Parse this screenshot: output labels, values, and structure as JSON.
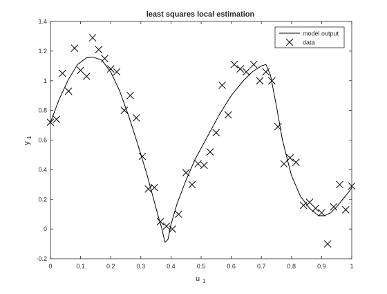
{
  "chart_data": {
    "type": "line",
    "title": "least squares local estimation",
    "xlabel": "u",
    "xlabel_sub": "1",
    "ylabel": "y",
    "ylabel_sub": "1",
    "xlim": [
      0,
      1
    ],
    "ylim": [
      -0.2,
      1.4
    ],
    "xticks": [
      "0",
      "0.1",
      "0.2",
      "0.3",
      "0.4",
      "0.5",
      "0.6",
      "0.7",
      "0.8",
      "0.9",
      "1"
    ],
    "yticks": [
      "-0.2",
      "0",
      "0.2",
      "0.4",
      "0.6",
      "0.8",
      "1",
      "1.2",
      "1.4"
    ],
    "grid": false,
    "legend_position": "top-right",
    "series": [
      {
        "name": "model output",
        "style": "line",
        "color": "#000000",
        "x": [
          0,
          0.03,
          0.06,
          0.09,
          0.12,
          0.14,
          0.17,
          0.2,
          0.23,
          0.26,
          0.29,
          0.32,
          0.34,
          0.36,
          0.37,
          0.38,
          0.39,
          0.4,
          0.42,
          0.45,
          0.48,
          0.52,
          0.56,
          0.6,
          0.64,
          0.67,
          0.7,
          0.715,
          0.73,
          0.75,
          0.77,
          0.8,
          0.83,
          0.86,
          0.89,
          0.91,
          0.93,
          0.95,
          0.97,
          0.99,
          1.0
        ],
        "y": [
          0.72,
          0.88,
          1.01,
          1.11,
          1.155,
          1.16,
          1.14,
          1.06,
          0.93,
          0.76,
          0.57,
          0.37,
          0.22,
          0.07,
          0.0,
          -0.09,
          -0.07,
          0.03,
          0.17,
          0.33,
          0.47,
          0.62,
          0.77,
          0.9,
          1.0,
          1.06,
          1.1,
          1.11,
          1.04,
          0.83,
          0.6,
          0.36,
          0.22,
          0.14,
          0.09,
          0.09,
          0.11,
          0.15,
          0.2,
          0.25,
          0.28
        ]
      },
      {
        "name": "data",
        "style": "markers",
        "marker": "x",
        "color": "#000000",
        "x": [
          0.0,
          0.02,
          0.04,
          0.06,
          0.08,
          0.1,
          0.12,
          0.14,
          0.16,
          0.18,
          0.2,
          0.22,
          0.245,
          0.265,
          0.285,
          0.305,
          0.325,
          0.345,
          0.365,
          0.385,
          0.405,
          0.425,
          0.45,
          0.47,
          0.49,
          0.51,
          0.53,
          0.55,
          0.57,
          0.59,
          0.61,
          0.63,
          0.65,
          0.675,
          0.695,
          0.715,
          0.735,
          0.755,
          0.775,
          0.795,
          0.815,
          0.84,
          0.86,
          0.88,
          0.9,
          0.92,
          0.94,
          0.96,
          0.98,
          1.0
        ],
        "y": [
          0.72,
          0.74,
          1.05,
          0.93,
          1.22,
          1.07,
          1.03,
          1.29,
          1.21,
          1.15,
          1.08,
          1.06,
          0.8,
          0.9,
          0.75,
          0.49,
          0.27,
          0.28,
          0.05,
          0.02,
          0.0,
          0.1,
          0.38,
          0.3,
          0.44,
          0.43,
          0.52,
          0.65,
          0.97,
          0.77,
          1.11,
          1.08,
          1.06,
          1.11,
          1.0,
          1.06,
          1.0,
          0.69,
          0.44,
          0.48,
          0.45,
          0.16,
          0.18,
          0.14,
          0.11,
          -0.1,
          0.15,
          0.3,
          0.13,
          0.29
        ]
      }
    ]
  }
}
